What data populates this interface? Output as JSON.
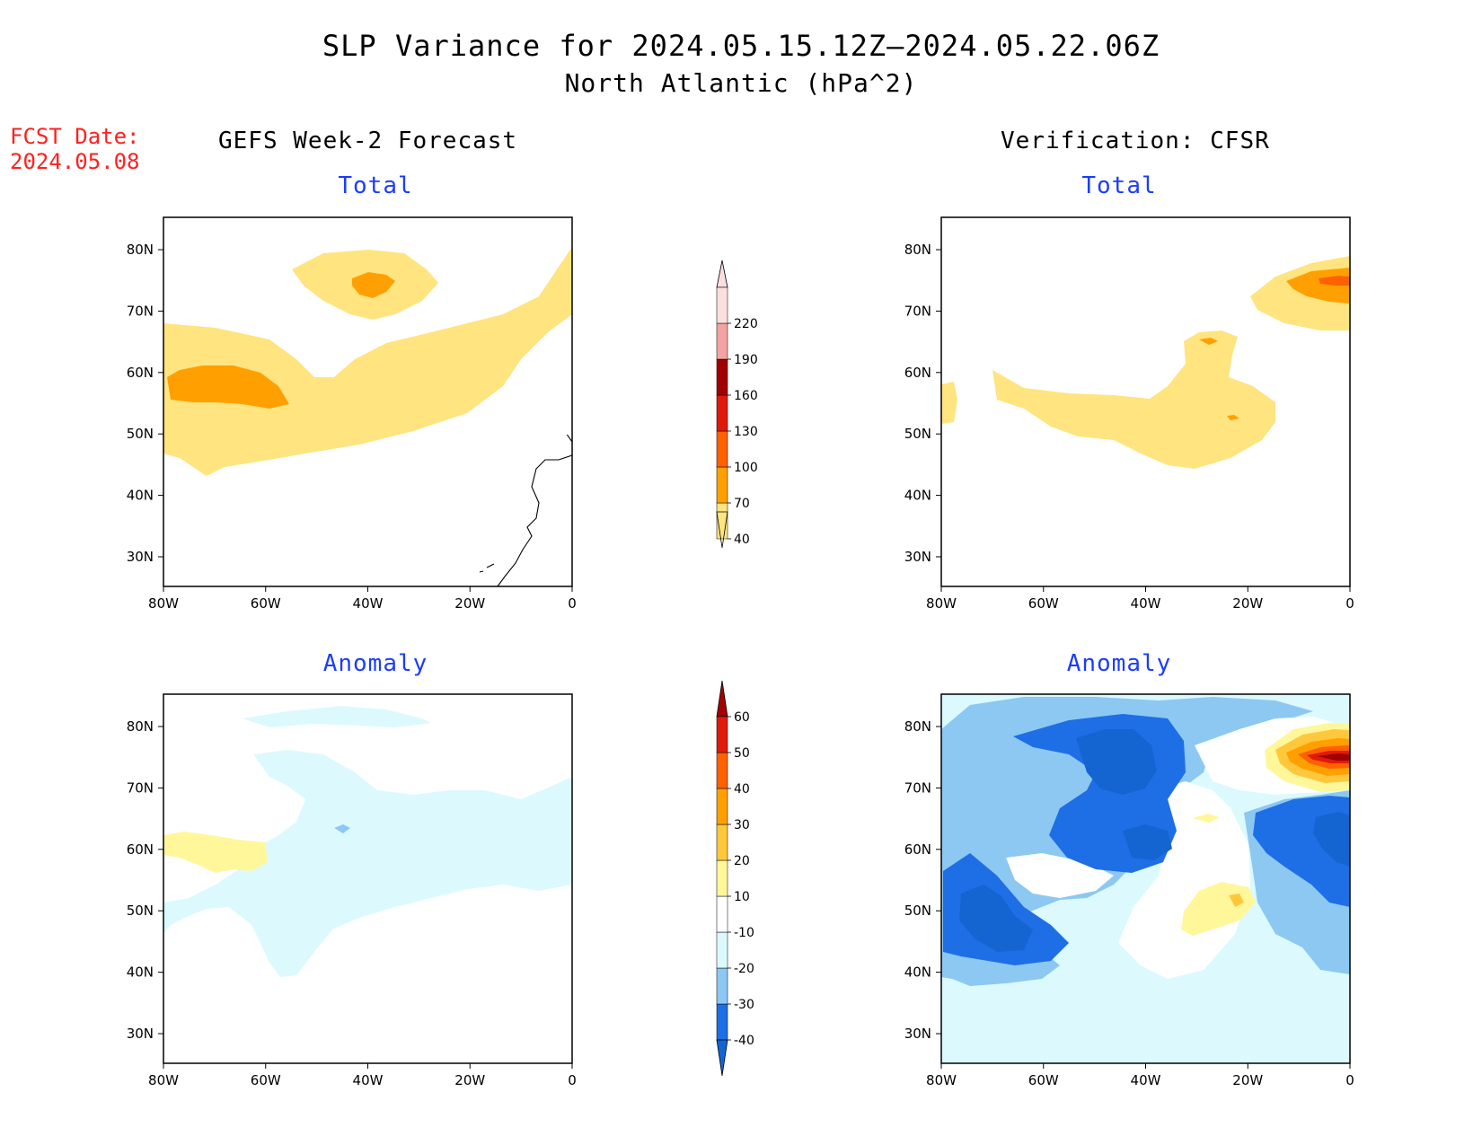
{
  "title": {
    "line1": "SLP Variance for 2024.05.15.12Z–2024.05.22.06Z",
    "line2": "North Atlantic (hPa^2)"
  },
  "fcst_date": {
    "label": "FCST Date:",
    "value": "2024.05.08"
  },
  "columns": {
    "left": "GEFS Week-2 Forecast",
    "right": "Verification: CFSR"
  },
  "panels": {
    "forecast_total": {
      "title": "Total"
    },
    "verification_total": {
      "title": "Total"
    },
    "forecast_anomaly": {
      "title": "Anomaly"
    },
    "verification_anomaly": {
      "title": "Anomaly"
    }
  },
  "axes": {
    "lon_labels": [
      "80W",
      "60W",
      "40W",
      "20W",
      "0"
    ],
    "lat_labels": [
      "80N",
      "70N",
      "60N",
      "50N",
      "40N",
      "30N"
    ]
  },
  "total_colorbar": {
    "labels": [
      "40",
      "70",
      "100",
      "130",
      "160",
      "190",
      "220"
    ],
    "colors": [
      "#ffe47f",
      "#ffa000",
      "#ff6000",
      "#e01a0a",
      "#a00000",
      "#f4a3a3",
      "#fbdede"
    ]
  },
  "anomaly_colorbar": {
    "labels": [
      "-40",
      "-30",
      "-20",
      "-10",
      "10",
      "20",
      "30",
      "40",
      "50",
      "60"
    ],
    "colors": [
      "#1464d2",
      "#1e6ee6",
      "#8cc8f2",
      "#dcfafe",
      "#ffffff",
      "#fff79a",
      "#ffc83c",
      "#ffa000",
      "#ff6000",
      "#e01a0a",
      "#a50000"
    ]
  },
  "chart_data": [
    {
      "type": "heatmap",
      "panel": "GEFS Week-2 Forecast — Total",
      "regions": [
        {
          "area": "broad band Labrador Sea to Iceland / Norwegian Sea",
          "range": "40-70"
        },
        {
          "area": "central Greenland ~75N 38W",
          "range": "70-100"
        },
        {
          "area": "Labrador ~57N 70W",
          "range": "70-100"
        }
      ]
    },
    {
      "type": "heatmap",
      "panel": "Verification: CFSR — Total",
      "regions": [
        {
          "area": "North Atlantic ~52N 35W band",
          "range": "40-70"
        },
        {
          "area": "Greenland Sea ~73N 5W",
          "range": "70-100"
        },
        {
          "area": "Greenland Sea core ~74N 3W",
          "range": "100-130"
        }
      ]
    },
    {
      "type": "heatmap",
      "panel": "GEFS Week-2 Forecast — Anomaly",
      "regions": [
        {
          "area": "southern Greenland / central North Atlantic",
          "range": "-20 to -10"
        },
        {
          "area": "Labrador ~60N 70W",
          "range": "10-20"
        }
      ]
    },
    {
      "type": "heatmap",
      "panel": "Verification: CFSR — Anomaly",
      "regions": [
        {
          "area": "Greenland ~75N 45W",
          "range": "-40 to -30"
        },
        {
          "area": "Nova Scotia / Newfoundland ~47N 70W",
          "range": "-40 to -30"
        },
        {
          "area": "North Sea / British Isles ~60N 5W",
          "range": "-40 to -30"
        },
        {
          "area": "Greenland Sea ~75N 5W",
          "range": "40-60"
        },
        {
          "area": "mid Atlantic ~52N 25W",
          "range": "10-30"
        }
      ]
    }
  ]
}
